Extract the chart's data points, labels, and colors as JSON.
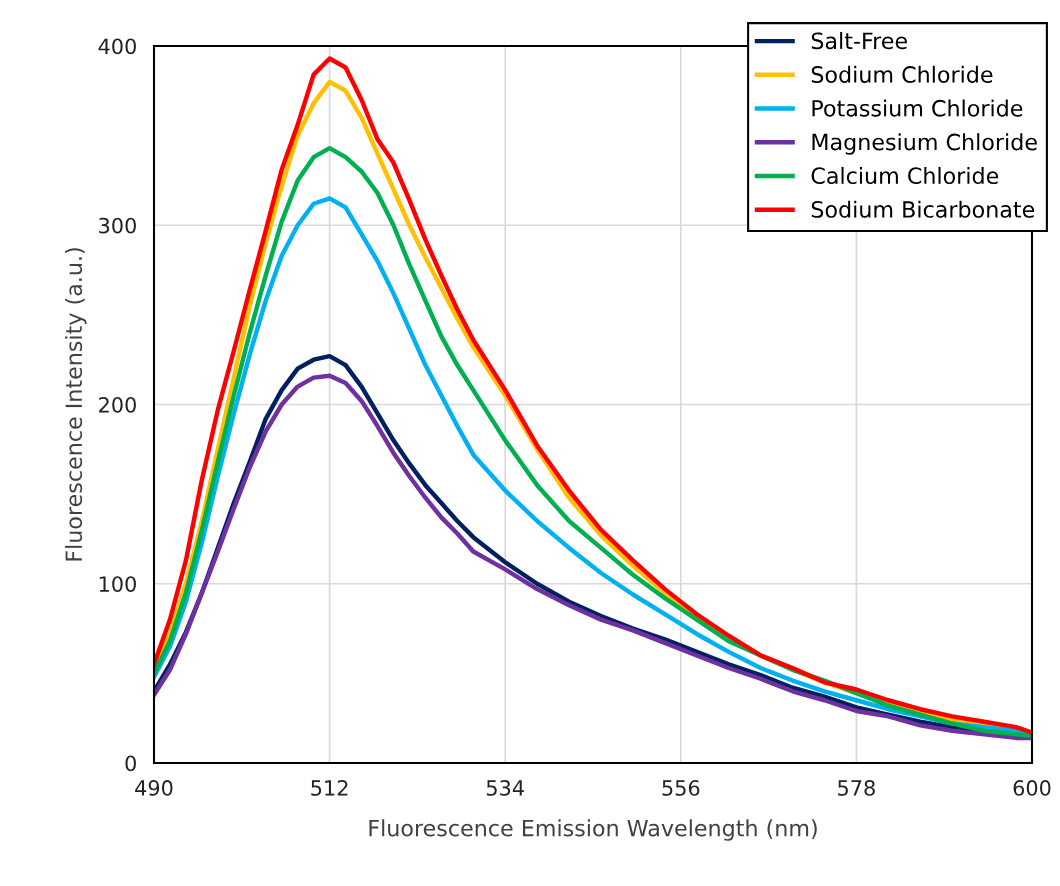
{
  "chart_data": {
    "type": "line",
    "xlabel": "Fluorescence Emission Wavelength (nm)",
    "ylabel": "Fluorescence Intensity (a.u.)",
    "x": [
      490,
      492,
      494,
      496,
      498,
      500,
      502,
      504,
      506,
      508,
      510,
      512,
      514,
      516,
      518,
      520,
      522,
      524,
      526,
      528,
      530,
      534,
      538,
      542,
      546,
      550,
      554,
      558,
      562,
      566,
      570,
      574,
      578,
      582,
      586,
      590,
      594,
      598,
      600
    ],
    "xlim": [
      490,
      600
    ],
    "xticks": [
      490,
      512,
      534,
      556,
      578,
      600
    ],
    "ylim": [
      0,
      400
    ],
    "yticks": [
      0,
      100,
      200,
      300,
      400
    ],
    "grid": true,
    "legend": "top right",
    "marker": "none",
    "line_style": "solid",
    "series": [
      {
        "name": "Salt-Free",
        "color": "#002060",
        "values": [
          40,
          55,
          73,
          95,
          120,
          145,
          168,
          192,
          208,
          220,
          225,
          227,
          222,
          210,
          195,
          180,
          167,
          155,
          145,
          135,
          126,
          112,
          100,
          90,
          82,
          75,
          69,
          62,
          55,
          49,
          42,
          37,
          31,
          27,
          23,
          20,
          18,
          15,
          14
        ]
      },
      {
        "name": "Sodium Chloride",
        "color": "#ffc000",
        "values": [
          52,
          72,
          100,
          135,
          175,
          215,
          255,
          290,
          322,
          350,
          368,
          380,
          375,
          360,
          340,
          320,
          300,
          282,
          265,
          248,
          232,
          205,
          175,
          148,
          127,
          110,
          95,
          82,
          70,
          60,
          52,
          45,
          39,
          33,
          28,
          24,
          21,
          18,
          17
        ]
      },
      {
        "name": "Potassium Chloride",
        "color": "#00b0f0",
        "values": [
          48,
          65,
          90,
          123,
          160,
          195,
          228,
          258,
          283,
          300,
          312,
          315,
          310,
          295,
          280,
          262,
          242,
          222,
          205,
          188,
          172,
          152,
          135,
          120,
          106,
          94,
          83,
          72,
          62,
          53,
          46,
          40,
          35,
          30,
          26,
          22,
          20,
          18,
          17
        ]
      },
      {
        "name": "Magnesium Chloride",
        "color": "#7030a0",
        "values": [
          38,
          52,
          72,
          95,
          118,
          142,
          165,
          185,
          200,
          210,
          215,
          216,
          212,
          202,
          188,
          173,
          160,
          148,
          137,
          128,
          118,
          108,
          97,
          88,
          80,
          74,
          67,
          60,
          53,
          47,
          40,
          35,
          29,
          26,
          21,
          18,
          16,
          14,
          14
        ]
      },
      {
        "name": "Calcium Chloride",
        "color": "#00b050",
        "values": [
          50,
          68,
          95,
          130,
          168,
          205,
          240,
          272,
          302,
          325,
          338,
          343,
          338,
          330,
          318,
          300,
          278,
          258,
          238,
          222,
          208,
          180,
          155,
          135,
          120,
          105,
          92,
          80,
          68,
          60,
          52,
          46,
          39,
          32,
          27,
          22,
          18,
          16,
          15
        ]
      },
      {
        "name": "Sodium Bicarbonate",
        "color": "#ff0000",
        "values": [
          55,
          80,
          113,
          158,
          197,
          230,
          264,
          297,
          331,
          356,
          384,
          393,
          388,
          370,
          348,
          335,
          314,
          292,
          272,
          253,
          236,
          208,
          177,
          152,
          130,
          113,
          97,
          83,
          71,
          60,
          53,
          45,
          41,
          35,
          30,
          26,
          23,
          20,
          17
        ]
      }
    ]
  }
}
